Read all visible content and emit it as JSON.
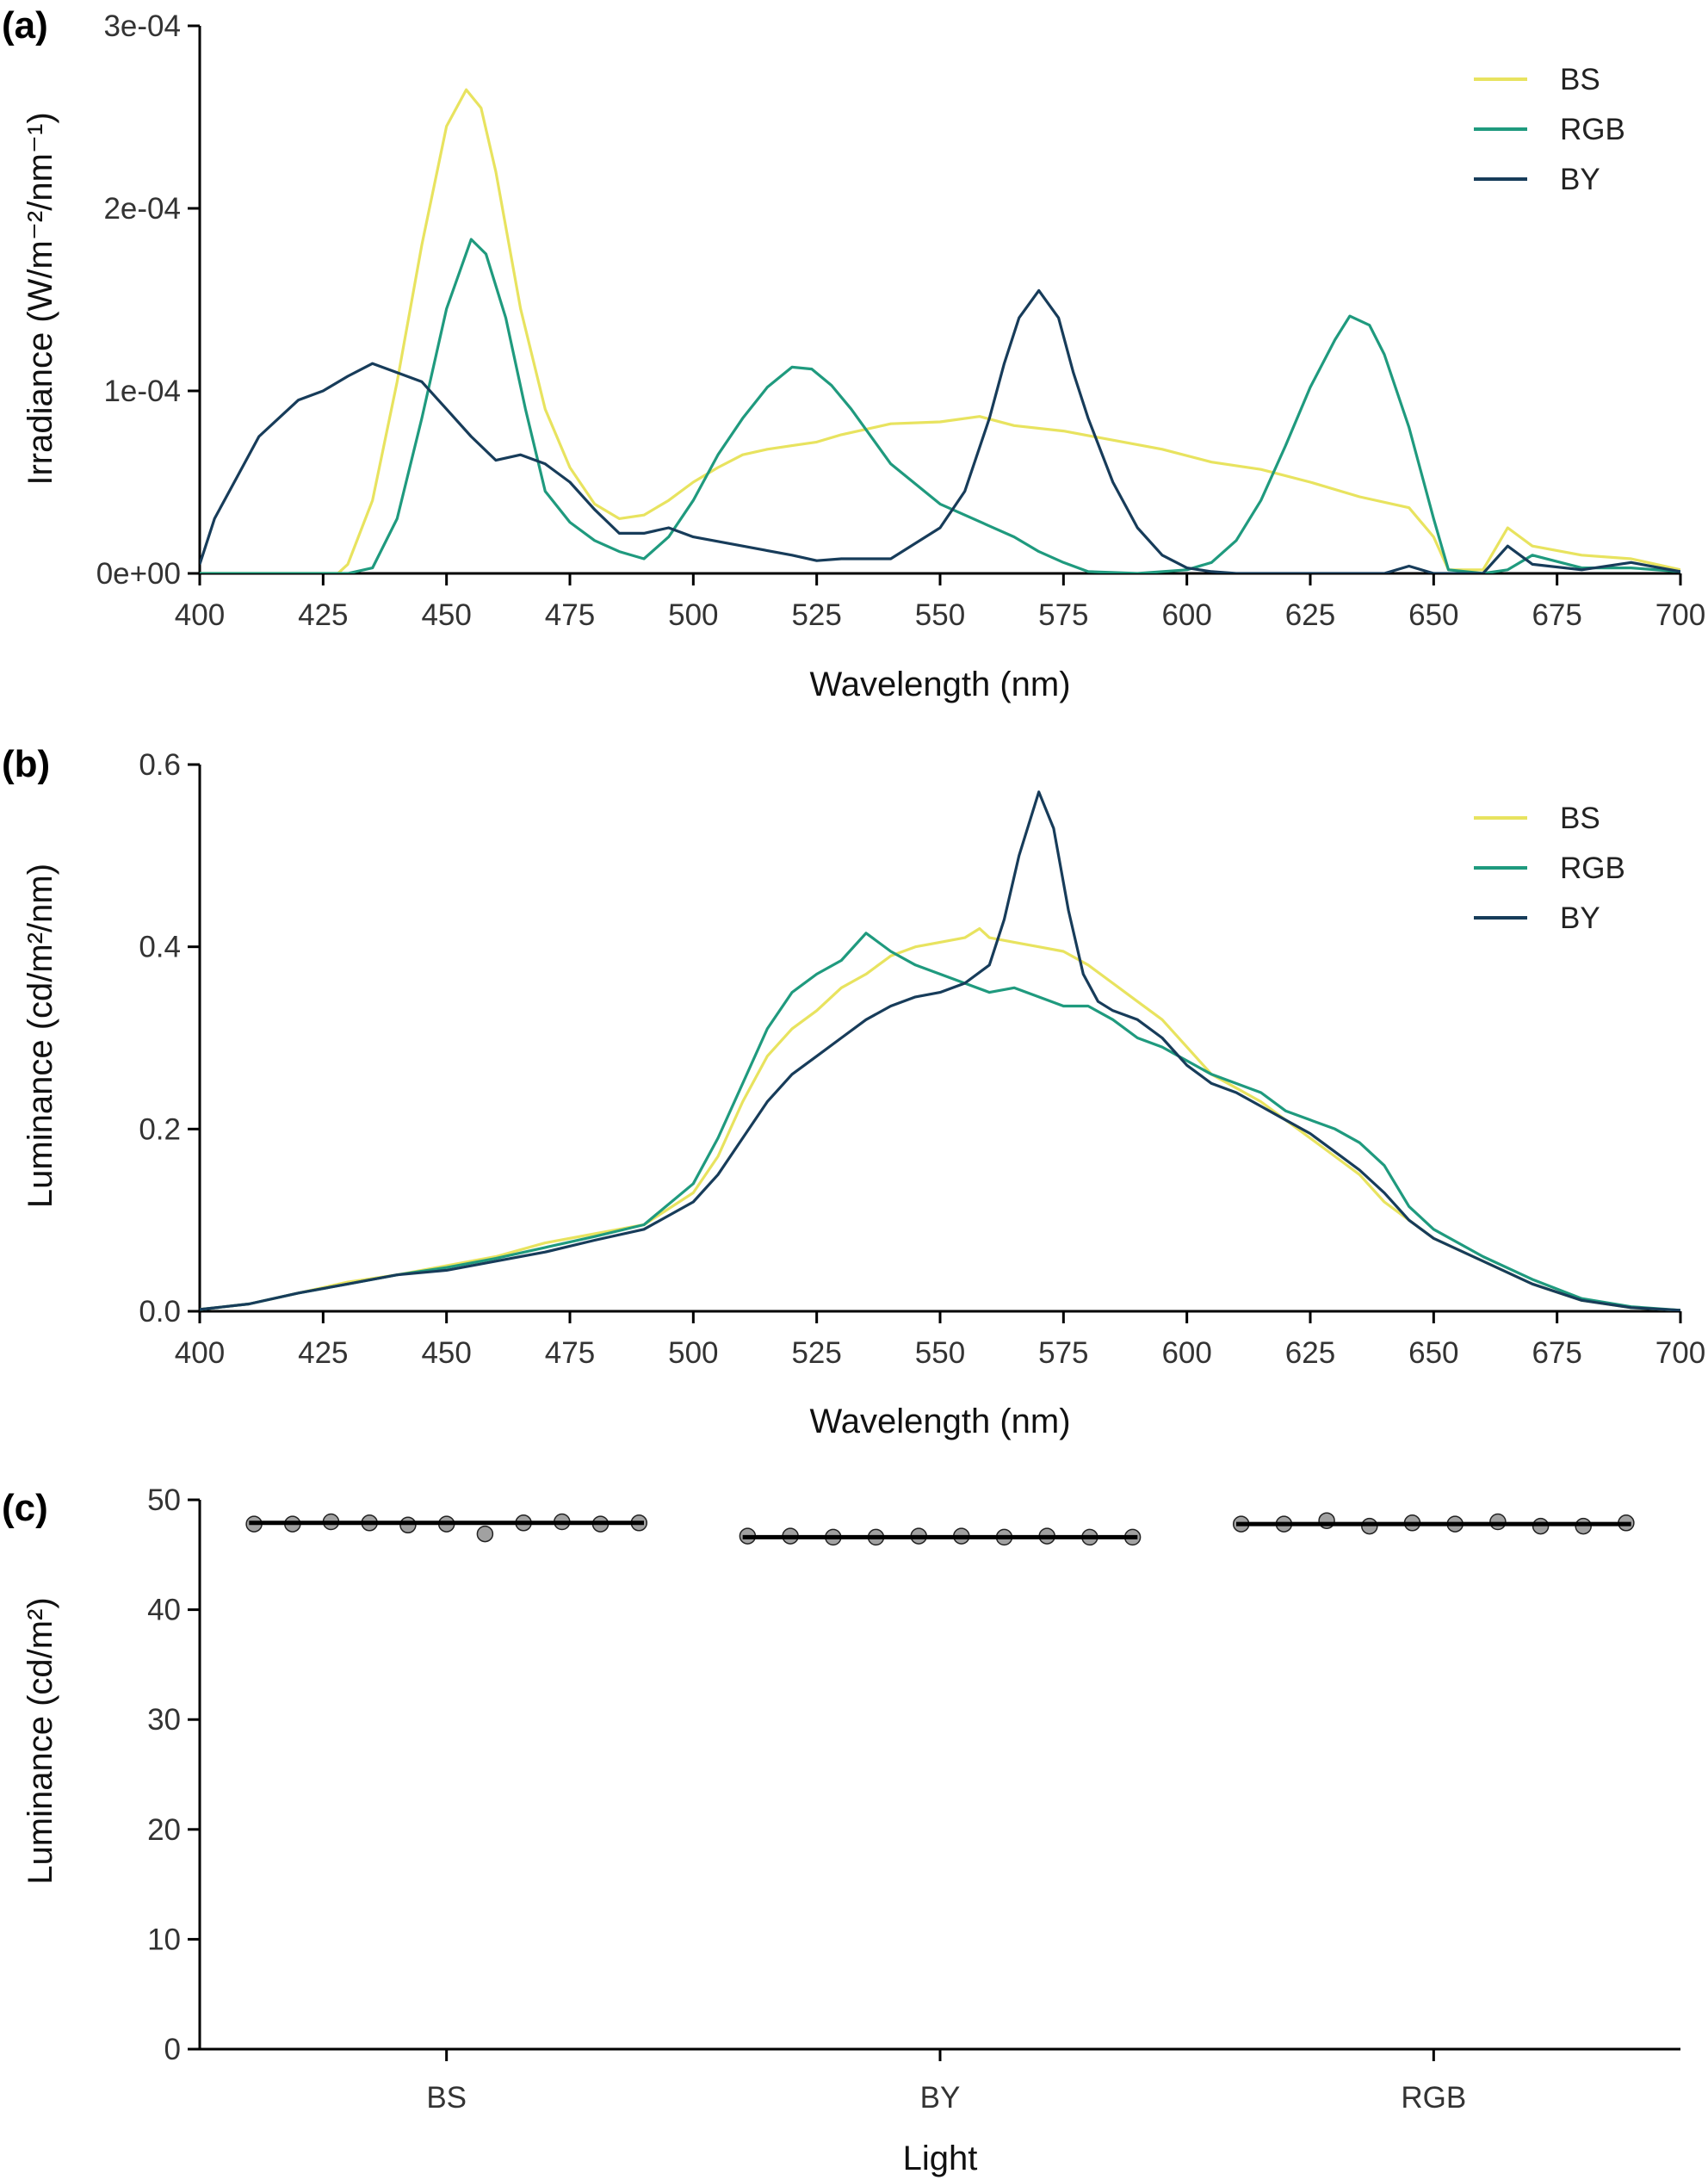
{
  "colors": {
    "BS": "#e8e35f",
    "RGB": "#1f9a7e",
    "BY": "#173c5a",
    "point": "#909090"
  },
  "chart_data": [
    {
      "type": "line",
      "panel_label": "(a)",
      "xlabel": "Wavelength (nm)",
      "ylabel": "Irradiance (W/m⁻²/nm⁻¹)",
      "xlim": [
        400,
        700
      ],
      "ylim": [
        0,
        0.0003
      ],
      "xticks": [
        400,
        425,
        450,
        475,
        500,
        525,
        550,
        575,
        600,
        625,
        650,
        675,
        700
      ],
      "yticks": [
        0,
        0.0001,
        0.0002,
        0.0003
      ],
      "ytick_labels": [
        "0e+00",
        "1e-04",
        "2e-04",
        "3e-04"
      ],
      "legend": "top-right",
      "series": [
        {
          "name": "BS",
          "color_key": "BS",
          "x": [
            400,
            410,
            420,
            428,
            430,
            435,
            440,
            445,
            450,
            454,
            457,
            460,
            465,
            470,
            475,
            480,
            485,
            490,
            495,
            500,
            505,
            510,
            515,
            520,
            525,
            530,
            540,
            550,
            558,
            565,
            575,
            585,
            595,
            605,
            615,
            625,
            635,
            645,
            650,
            653,
            660,
            665,
            670,
            680,
            690,
            700
          ],
          "y": [
            0,
            0,
            0,
            0,
            5e-06,
            4e-05,
            0.000105,
            0.00018,
            0.000245,
            0.000265,
            0.000255,
            0.00022,
            0.000145,
            9e-05,
            5.8e-05,
            3.8e-05,
            3e-05,
            3.2e-05,
            4e-05,
            5e-05,
            5.8e-05,
            6.5e-05,
            6.8e-05,
            7e-05,
            7.2e-05,
            7.6e-05,
            8.2e-05,
            8.3e-05,
            8.6e-05,
            8.1e-05,
            7.8e-05,
            7.3e-05,
            6.8e-05,
            6.1e-05,
            5.7e-05,
            5e-05,
            4.2e-05,
            3.6e-05,
            2e-05,
            2e-06,
            2e-06,
            2.5e-05,
            1.5e-05,
            1e-05,
            8e-06,
            2e-06
          ]
        },
        {
          "name": "RGB",
          "color_key": "RGB",
          "x": [
            400,
            420,
            430,
            435,
            440,
            445,
            450,
            455,
            458,
            462,
            466,
            470,
            475,
            480,
            485,
            490,
            495,
            500,
            505,
            510,
            515,
            520,
            524,
            528,
            532,
            540,
            550,
            560,
            565,
            570,
            575,
            580,
            590,
            600,
            605,
            610,
            615,
            620,
            625,
            630,
            633,
            637,
            640,
            645,
            650,
            653,
            660,
            665,
            670,
            680,
            690,
            700
          ],
          "y": [
            0,
            0,
            0,
            3e-06,
            3e-05,
            8.5e-05,
            0.000145,
            0.000183,
            0.000175,
            0.00014,
            9e-05,
            4.5e-05,
            2.8e-05,
            1.8e-05,
            1.2e-05,
            8e-06,
            2e-05,
            4e-05,
            6.5e-05,
            8.5e-05,
            0.000102,
            0.000113,
            0.000112,
            0.000103,
            9e-05,
            6e-05,
            3.8e-05,
            2.6e-05,
            2e-05,
            1.2e-05,
            6e-06,
            1e-06,
            0,
            2e-06,
            6e-06,
            1.8e-05,
            4e-05,
            7e-05,
            0.000102,
            0.000128,
            0.000141,
            0.000136,
            0.00012,
            8e-05,
            3e-05,
            2e-06,
            0,
            2e-06,
            1e-05,
            3e-06,
            3e-06,
            1e-06
          ]
        },
        {
          "name": "BY",
          "color_key": "BY",
          "x": [
            400,
            403,
            408,
            412,
            416,
            420,
            425,
            430,
            435,
            440,
            445,
            450,
            455,
            460,
            465,
            470,
            475,
            480,
            485,
            490,
            495,
            500,
            510,
            520,
            525,
            530,
            540,
            550,
            555,
            560,
            563,
            566,
            570,
            574,
            577,
            580,
            585,
            590,
            595,
            600,
            605,
            610,
            620,
            630,
            640,
            645,
            650,
            660,
            665,
            670,
            680,
            690,
            700
          ],
          "y": [
            5e-06,
            3e-05,
            5.5e-05,
            7.5e-05,
            8.5e-05,
            9.5e-05,
            0.0001,
            0.000108,
            0.000115,
            0.00011,
            0.000105,
            9e-05,
            7.5e-05,
            6.2e-05,
            6.5e-05,
            6e-05,
            5e-05,
            3.5e-05,
            2.2e-05,
            2.2e-05,
            2.5e-05,
            2e-05,
            1.5e-05,
            1e-05,
            7e-06,
            8e-06,
            8e-06,
            2.5e-05,
            4.5e-05,
            8.5e-05,
            0.000115,
            0.00014,
            0.000155,
            0.00014,
            0.00011,
            8.5e-05,
            5e-05,
            2.5e-05,
            1e-05,
            3e-06,
            1e-06,
            0,
            0,
            0,
            0,
            4e-06,
            0,
            0,
            1.5e-05,
            5e-06,
            2e-06,
            6e-06,
            1e-06
          ]
        }
      ]
    },
    {
      "type": "line",
      "panel_label": "(b)",
      "xlabel": "Wavelength (nm)",
      "ylabel": "Luminance (cd/m²/nm)",
      "xlim": [
        400,
        700
      ],
      "ylim": [
        0,
        0.6
      ],
      "xticks": [
        400,
        425,
        450,
        475,
        500,
        525,
        550,
        575,
        600,
        625,
        650,
        675,
        700
      ],
      "yticks": [
        0,
        0.2,
        0.4,
        0.6
      ],
      "ytick_labels": [
        "0.0",
        "0.2",
        "0.4",
        "0.6"
      ],
      "legend": "top-right",
      "series": [
        {
          "name": "BS",
          "color_key": "BS",
          "x": [
            400,
            410,
            420,
            430,
            440,
            450,
            460,
            470,
            480,
            490,
            500,
            505,
            510,
            515,
            520,
            525,
            530,
            535,
            540,
            545,
            550,
            555,
            558,
            560,
            565,
            570,
            575,
            580,
            585,
            590,
            595,
            600,
            605,
            610,
            615,
            620,
            625,
            630,
            635,
            640,
            645,
            650,
            660,
            670,
            680,
            690,
            700
          ],
          "y": [
            0.002,
            0.008,
            0.02,
            0.032,
            0.04,
            0.05,
            0.06,
            0.075,
            0.085,
            0.095,
            0.13,
            0.17,
            0.23,
            0.28,
            0.31,
            0.33,
            0.355,
            0.37,
            0.39,
            0.4,
            0.405,
            0.41,
            0.42,
            0.41,
            0.405,
            0.4,
            0.395,
            0.38,
            0.36,
            0.34,
            0.32,
            0.29,
            0.26,
            0.245,
            0.23,
            0.21,
            0.19,
            0.17,
            0.15,
            0.12,
            0.1,
            0.08,
            0.055,
            0.03,
            0.012,
            0.004,
            0.001
          ]
        },
        {
          "name": "RGB",
          "color_key": "RGB",
          "x": [
            400,
            410,
            420,
            430,
            440,
            450,
            460,
            470,
            480,
            490,
            500,
            505,
            510,
            515,
            520,
            525,
            530,
            535,
            540,
            545,
            550,
            555,
            560,
            565,
            570,
            575,
            580,
            585,
            590,
            595,
            600,
            605,
            610,
            615,
            620,
            625,
            630,
            635,
            640,
            645,
            650,
            660,
            670,
            680,
            690,
            700
          ],
          "y": [
            0.002,
            0.008,
            0.02,
            0.03,
            0.04,
            0.048,
            0.058,
            0.07,
            0.082,
            0.095,
            0.14,
            0.19,
            0.25,
            0.31,
            0.35,
            0.37,
            0.385,
            0.415,
            0.395,
            0.38,
            0.37,
            0.36,
            0.35,
            0.355,
            0.345,
            0.335,
            0.335,
            0.32,
            0.3,
            0.29,
            0.275,
            0.26,
            0.25,
            0.24,
            0.22,
            0.21,
            0.2,
            0.185,
            0.16,
            0.115,
            0.09,
            0.06,
            0.035,
            0.014,
            0.005,
            0.001
          ]
        },
        {
          "name": "BY",
          "color_key": "BY",
          "x": [
            400,
            410,
            420,
            430,
            440,
            450,
            460,
            470,
            480,
            490,
            500,
            505,
            510,
            515,
            520,
            525,
            530,
            535,
            540,
            545,
            550,
            555,
            560,
            563,
            566,
            570,
            573,
            576,
            579,
            582,
            585,
            590,
            595,
            600,
            605,
            610,
            615,
            620,
            625,
            630,
            635,
            640,
            645,
            650,
            660,
            670,
            680,
            690,
            700
          ],
          "y": [
            0.002,
            0.008,
            0.02,
            0.03,
            0.04,
            0.045,
            0.055,
            0.065,
            0.078,
            0.09,
            0.12,
            0.15,
            0.19,
            0.23,
            0.26,
            0.28,
            0.3,
            0.32,
            0.335,
            0.345,
            0.35,
            0.36,
            0.38,
            0.43,
            0.5,
            0.57,
            0.53,
            0.44,
            0.37,
            0.34,
            0.33,
            0.32,
            0.3,
            0.27,
            0.25,
            0.24,
            0.225,
            0.21,
            0.195,
            0.175,
            0.155,
            0.13,
            0.1,
            0.08,
            0.055,
            0.03,
            0.012,
            0.004,
            0.001
          ]
        }
      ]
    },
    {
      "type": "scatter",
      "panel_label": "(c)",
      "xlabel": "Light",
      "ylabel": "Luminance (cd/m²)",
      "categories": [
        "BS",
        "BY",
        "RGB"
      ],
      "ylim": [
        0,
        50
      ],
      "yticks": [
        0,
        10,
        20,
        30,
        40,
        50
      ],
      "ytick_labels": [
        "0",
        "10",
        "20",
        "30",
        "40",
        "50"
      ],
      "means": [
        47.9,
        46.6,
        47.8
      ],
      "groups": [
        {
          "name": "BS",
          "values": [
            47.8,
            47.8,
            48.0,
            47.9,
            47.7,
            47.8,
            46.9,
            47.9,
            48.0,
            47.8,
            47.9
          ]
        },
        {
          "name": "BY",
          "values": [
            46.7,
            46.7,
            46.6,
            46.6,
            46.7,
            46.7,
            46.6,
            46.7,
            46.6,
            46.6
          ]
        },
        {
          "name": "RGB",
          "values": [
            47.8,
            47.8,
            48.1,
            47.6,
            47.9,
            47.8,
            48.0,
            47.6,
            47.6,
            47.9
          ]
        }
      ]
    }
  ]
}
